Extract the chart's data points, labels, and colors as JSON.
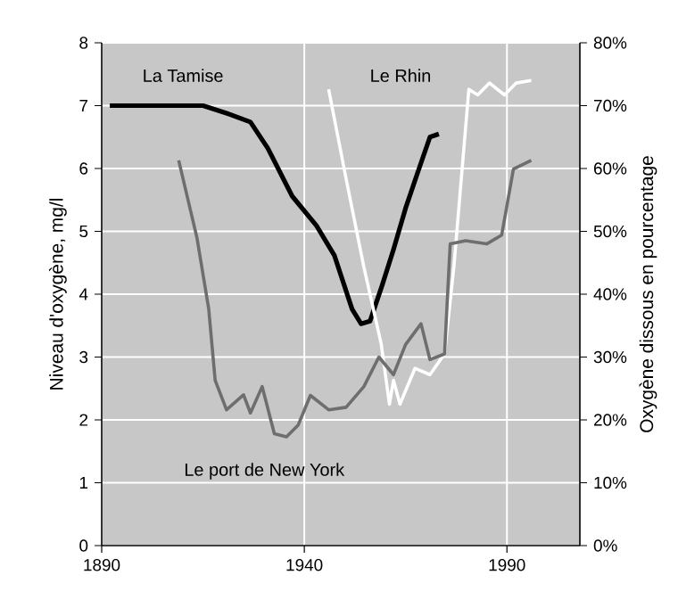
{
  "chart_data": {
    "type": "line",
    "xlabel": null,
    "ylabel": "Niveau d'oxygène, mg/l",
    "y2label": "Oxygène dissous en pourcentage",
    "xlim": [
      1890,
      2008
    ],
    "xticks": [
      1890,
      1940,
      1990
    ],
    "ylim": [
      0,
      8
    ],
    "yticks": [
      0,
      1,
      2,
      3,
      4,
      5,
      6,
      7,
      8
    ],
    "y2lim": [
      0,
      80
    ],
    "y2ticks": [
      {
        "value": 0,
        "label": "0%"
      },
      {
        "value": 10,
        "label": "10%"
      },
      {
        "value": 20,
        "label": "20%"
      },
      {
        "value": 30,
        "label": "30%"
      },
      {
        "value": 40,
        "label": "40%"
      },
      {
        "value": 50,
        "label": "50%"
      },
      {
        "value": 60,
        "label": "60%"
      },
      {
        "value": 70,
        "label": "70%"
      },
      {
        "value": 80,
        "label": "80%"
      }
    ],
    "grid": true,
    "legend": false,
    "marker": "none",
    "line_style": "solid",
    "series": [
      {
        "name": "La Tamise",
        "color": "#000000",
        "x": [
          1892,
          1915,
          1920.8,
          1926.7,
          1931,
          1937,
          1943,
          1947.4,
          1951.8,
          1954,
          1956.2,
          1959.2,
          1962,
          1965,
          1968,
          1971,
          1973.2
        ],
        "values": [
          7.0,
          7.0,
          6.88,
          6.74,
          6.32,
          5.56,
          5.09,
          4.62,
          3.76,
          3.53,
          3.57,
          4.14,
          4.71,
          5.37,
          5.94,
          6.5,
          6.55
        ]
      },
      {
        "name": "Le Rhin",
        "color": "#ffffff",
        "x": [
          1946,
          1950.3,
          1954.7,
          1959,
          1961,
          1962,
          1963.6,
          1967.3,
          1971,
          1974.6,
          1976.9,
          1980.6,
          1982.8,
          1985.7,
          1989.4,
          1992.3,
          1996
        ],
        "values": [
          7.26,
          5.84,
          4.43,
          3.2,
          2.25,
          2.63,
          2.25,
          2.82,
          2.72,
          3.05,
          4.43,
          7.26,
          7.17,
          7.36,
          7.17,
          7.36,
          7.4
        ]
      },
      {
        "name": "Le port de New York",
        "color": "#6e6e6e",
        "x": [
          1909,
          1913.5,
          1916.4,
          1918,
          1920.8,
          1925,
          1926.7,
          1929.6,
          1932.6,
          1935.6,
          1938.5,
          1941.5,
          1946,
          1950.3,
          1954.7,
          1958.4,
          1962,
          1965,
          1968.8,
          1971,
          1974.6,
          1976,
          1979.8,
          1985,
          1988.7,
          1991.6,
          1996
        ],
        "values": [
          6.13,
          4.9,
          3.77,
          2.63,
          2.16,
          2.4,
          2.11,
          2.53,
          1.78,
          1.73,
          1.92,
          2.39,
          2.16,
          2.2,
          2.53,
          3.0,
          2.72,
          3.2,
          3.53,
          2.96,
          3.05,
          4.8,
          4.85,
          4.8,
          4.94,
          5.99,
          6.13
        ]
      }
    ]
  }
}
